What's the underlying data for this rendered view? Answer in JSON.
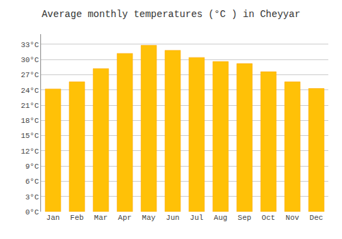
{
  "chart_data": {
    "type": "bar",
    "title": "Average monthly temperatures (°C ) in Cheyyar",
    "categories": [
      "Jan",
      "Feb",
      "Mar",
      "Apr",
      "May",
      "Jun",
      "Jul",
      "Aug",
      "Sep",
      "Oct",
      "Nov",
      "Dec"
    ],
    "values": [
      24.2,
      25.6,
      28.2,
      31.2,
      32.8,
      31.8,
      30.4,
      29.6,
      29.2,
      27.6,
      25.6,
      24.3
    ],
    "color": "#FFC107",
    "ylim": [
      0,
      35
    ],
    "yticks": [
      {
        "value": 0,
        "label": "0°C"
      },
      {
        "value": 3,
        "label": "3°C"
      },
      {
        "value": 6,
        "label": "6°C"
      },
      {
        "value": 9,
        "label": "9°C"
      },
      {
        "value": 12,
        "label": "12°C"
      },
      {
        "value": 15,
        "label": "15°C"
      },
      {
        "value": 18,
        "label": "18°C"
      },
      {
        "value": 21,
        "label": "21°C"
      },
      {
        "value": 24,
        "label": "24°C"
      },
      {
        "value": 27,
        "label": "27°C"
      },
      {
        "value": 30,
        "label": "30°C"
      },
      {
        "value": 33,
        "label": "33°C"
      }
    ],
    "grid": true
  }
}
